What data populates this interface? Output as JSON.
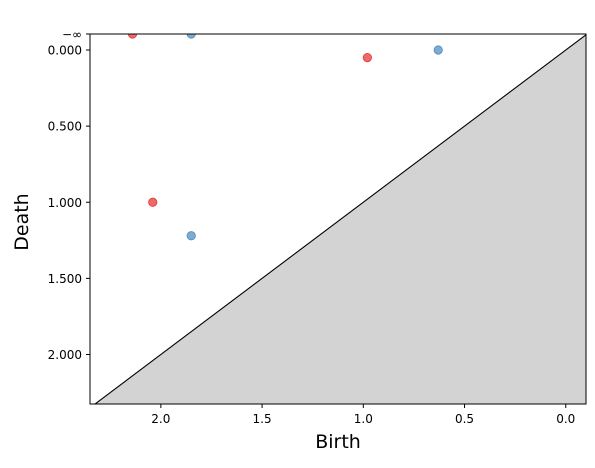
{
  "chart_data": {
    "type": "scatter",
    "title": "",
    "xlabel": "Birth",
    "ylabel": "Death",
    "x_inverted": true,
    "y_inverted": true,
    "xlim": [
      2.35,
      -0.1
    ],
    "ylim": [
      2.325,
      -0.105
    ],
    "x_ticks": [
      {
        "value": 2.0,
        "label": "2.0"
      },
      {
        "value": 1.5,
        "label": "1.5"
      },
      {
        "value": 1.0,
        "label": "1.0"
      },
      {
        "value": 0.5,
        "label": "0.5"
      },
      {
        "value": 0.0,
        "label": "0.0"
      }
    ],
    "y_ticks": [
      {
        "value": 0.0,
        "label": "0.000"
      },
      {
        "value": 0.5,
        "label": "0.500"
      },
      {
        "value": 1.0,
        "label": "1.000"
      },
      {
        "value": 1.5,
        "label": "1.500"
      },
      {
        "value": 2.0,
        "label": "2.000"
      }
    ],
    "infinity_line": {
      "value": -0.105,
      "label": "−∞",
      "color": "#666666"
    },
    "diagonal": {
      "color": "#000000",
      "fill": "#d3d3d3"
    },
    "series": [
      {
        "color": "#e41a1c",
        "points": [
          {
            "x": 2.14,
            "y": "-inf"
          },
          {
            "x": 0.98,
            "y": 0.05
          },
          {
            "x": 2.04,
            "y": 1.0
          }
        ]
      },
      {
        "color": "#377eb8",
        "points": [
          {
            "x": 1.85,
            "y": "-inf"
          },
          {
            "x": 0.63,
            "y": 0.0
          },
          {
            "x": 1.85,
            "y": 1.22
          }
        ]
      }
    ],
    "grid": false,
    "legend": "none"
  }
}
